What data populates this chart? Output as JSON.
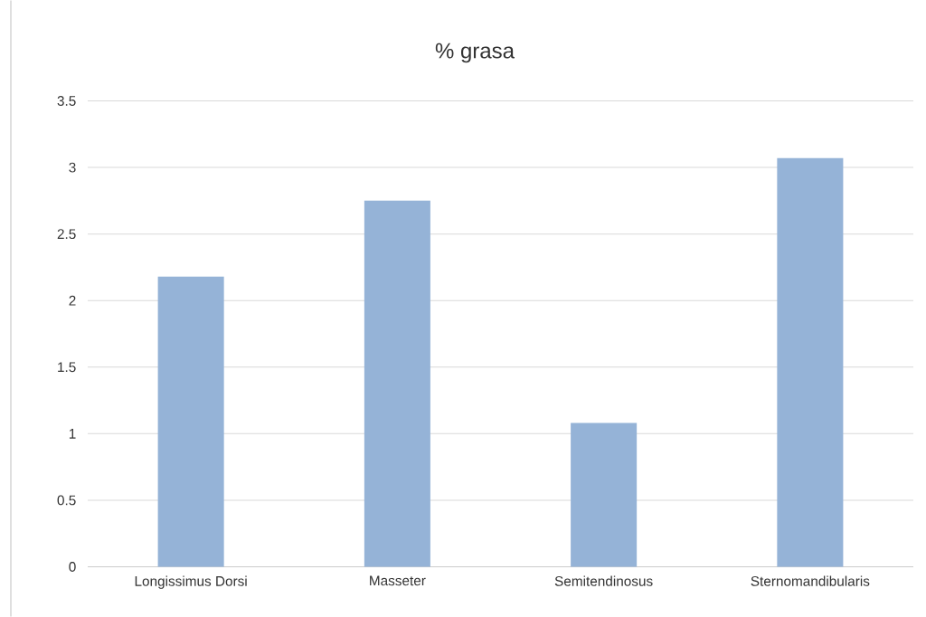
{
  "chart_data": {
    "type": "bar",
    "title": "% grasa",
    "categories": [
      "Longissimus Dorsi",
      "Masseter",
      "Semitendinosus",
      "Sternomandibularis"
    ],
    "values": [
      2.18,
      2.75,
      1.08,
      3.07
    ],
    "color": "#95b3d7",
    "ylim": [
      0,
      3.5
    ],
    "yticks": [
      0,
      0.5,
      1,
      1.5,
      2,
      2.5,
      3,
      3.5
    ],
    "grid": "y"
  }
}
